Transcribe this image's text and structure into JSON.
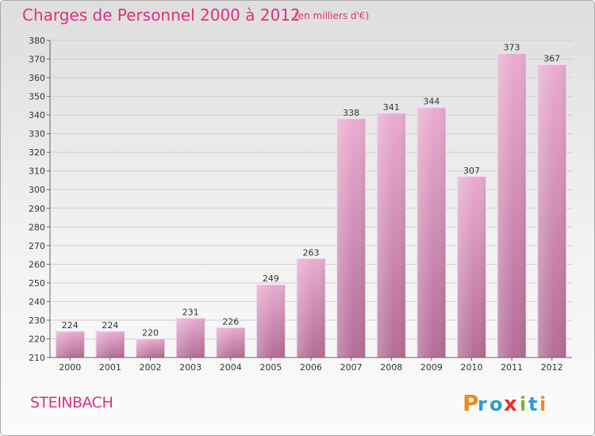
{
  "chart_data": {
    "type": "bar",
    "title": "Charges de Personnel 2000 à 2012",
    "subtitle": "(en milliers d'€)",
    "categories": [
      "2000",
      "2001",
      "2002",
      "2003",
      "2004",
      "2005",
      "2006",
      "2007",
      "2008",
      "2009",
      "2010",
      "2011",
      "2012"
    ],
    "values": [
      224,
      224,
      220,
      231,
      226,
      249,
      263,
      338,
      341,
      344,
      307,
      373,
      367
    ],
    "ylim": [
      210,
      380
    ],
    "ytick_step": 10,
    "grid": true,
    "bar_color": "#c978a8"
  },
  "footer": {
    "place": "STEINBACH",
    "logo_text": "Proxiti"
  },
  "colors": {
    "accent": "#e0307e"
  }
}
